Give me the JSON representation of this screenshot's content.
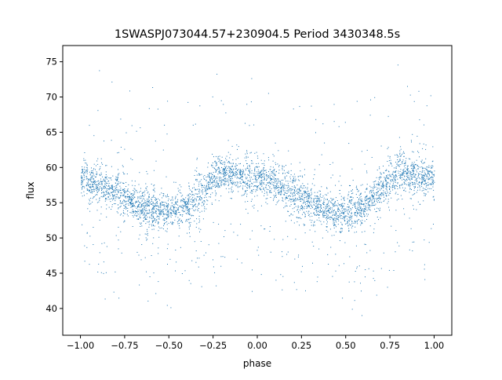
{
  "chart_data": {
    "type": "scatter",
    "title": "1SWASPJ073044.57+230904.5 Period 3430348.5s",
    "xlabel": "phase",
    "ylabel": "flux",
    "xlim": [
      -1.1,
      1.1
    ],
    "ylim": [
      36.2,
      77.3
    ],
    "x_ticks": [
      -1.0,
      -0.75,
      -0.5,
      -0.25,
      0.0,
      0.25,
      0.5,
      0.75,
      1.0
    ],
    "x_tick_labels": [
      "−1.00",
      "−0.75",
      "−0.50",
      "−0.25",
      "0.00",
      "0.25",
      "0.50",
      "0.75",
      "1.00"
    ],
    "y_ticks": [
      40,
      45,
      50,
      55,
      60,
      65,
      70,
      75
    ],
    "y_tick_labels": [
      "40",
      "45",
      "50",
      "55",
      "60",
      "65",
      "70",
      "75"
    ],
    "grid": false,
    "legend": "none",
    "marker_color": "#1f77b4",
    "x_range_of_points": [
      -1.0,
      1.0
    ],
    "series": [
      {
        "x": [
          -1.0,
          -0.9,
          -0.8,
          -0.7,
          -0.6,
          -0.5,
          -0.4,
          -0.3,
          -0.2,
          -0.1,
          0.0,
          0.1,
          0.2,
          0.3,
          0.4,
          0.5,
          0.6,
          0.7,
          0.8,
          0.9,
          1.0
        ],
        "y": [
          58.5,
          57.8,
          56.5,
          55.0,
          54.0,
          53.8,
          54.5,
          57.0,
          59.5,
          59.0,
          58.5,
          57.8,
          56.5,
          55.0,
          54.0,
          53.8,
          54.5,
          57.0,
          59.5,
          59.0,
          58.5
        ]
      }
    ]
  }
}
